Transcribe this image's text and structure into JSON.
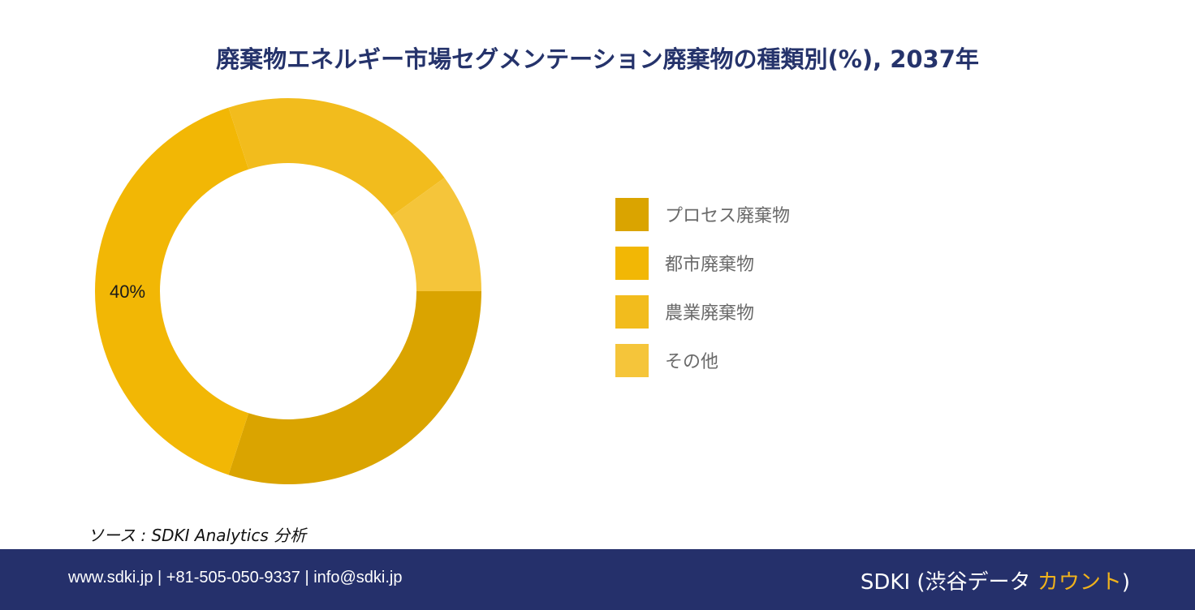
{
  "chart_data": {
    "type": "pie",
    "title": "廃棄物エネルギー市場セグメンテーション廃棄物の種類別(%), 2037年",
    "categories": [
      "プロセス廃棄物",
      "都市廃棄物",
      "農業廃棄物",
      "その他"
    ],
    "values": [
      30,
      40,
      20,
      10
    ],
    "data_labels": [
      "",
      "40%",
      "",
      ""
    ],
    "colors": [
      "#DAA400",
      "#F2B705",
      "#F2BC1D",
      "#F5C53A"
    ],
    "legend_position": "right"
  },
  "source": "ソース : SDKI Analytics 分析",
  "footer": {
    "contact": "www.sdki.jp | +81-505-050-9337 | info@sdki.jp",
    "brand_prefix": "SDKI (渋谷データ ",
    "brand_accent": "カウント",
    "brand_suffix": ")"
  }
}
